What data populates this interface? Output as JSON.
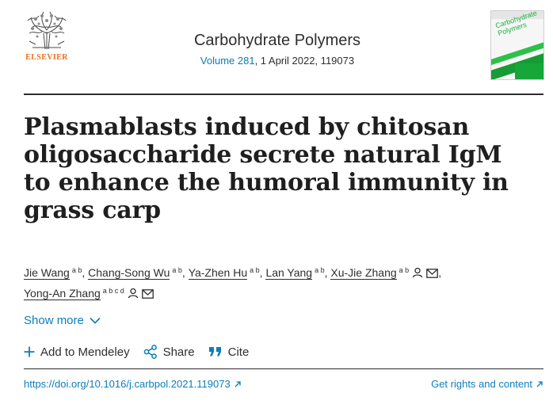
{
  "publisher": {
    "name": "ELSEVIER",
    "logo_icon": "elsevier-tree-logo"
  },
  "journal": {
    "title": "Carbohydrate Polymers",
    "volume_link": "Volume 281",
    "issue_info": ", 1 April 2022, 119073",
    "cover_text": "Carbohydrate Polymers"
  },
  "article": {
    "title": "Plasmablasts induced by chitosan oligosaccharide secrete natural IgM to enhance the humoral immunity in grass carp"
  },
  "authors": [
    {
      "name": "Jie Wang",
      "affiliations": "a b"
    },
    {
      "name": "Chang-Song Wu",
      "affiliations": "a b"
    },
    {
      "name": "Ya-Zhen Hu",
      "affiliations": "a b"
    },
    {
      "name": "Lan Yang",
      "affiliations": "a b"
    },
    {
      "name": "Xu-Jie Zhang",
      "affiliations": "a b"
    },
    {
      "name": "Yong-An Zhang",
      "affiliations": "a b c d"
    }
  ],
  "show_more": {
    "label": "Show more"
  },
  "actions": {
    "mendeley": "Add to Mendeley",
    "share": "Share",
    "cite": "Cite"
  },
  "links": {
    "doi": "https://doi.org/10.1016/j.carbpol.2021.119073",
    "rights": "Get rights and content"
  },
  "colors": {
    "link": "#0c7dbb",
    "publisher_orange": "#e9711c",
    "cover_green": "#1fae3a"
  }
}
